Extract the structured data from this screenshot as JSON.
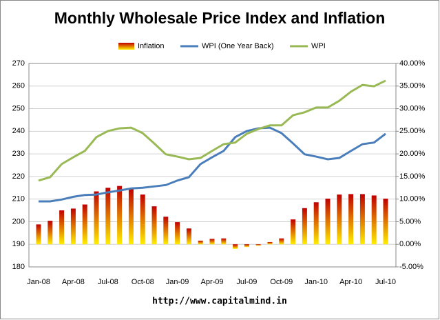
{
  "chart_data": {
    "type": "bar-line",
    "title": "Monthly Wholesale Price Index and Inflation",
    "annotation": "http://www.capitalmind.in",
    "categories": [
      "Jan-08",
      null,
      null,
      "Apr-08",
      null,
      null,
      "Jul-08",
      null,
      null,
      "Oct-08",
      null,
      null,
      "Jan-09",
      null,
      null,
      "Apr-09",
      null,
      null,
      "Jul-09",
      null,
      null,
      "Oct-09",
      null,
      null,
      "Jan-10",
      null,
      null,
      "Apr-10",
      null,
      null,
      "Jul-10"
    ],
    "series": [
      {
        "name": "Inflation",
        "type": "bar",
        "axis": "y2",
        "color": "#c00000",
        "color2": "#ffee00",
        "values": [
          4.4,
          5.2,
          7.5,
          7.9,
          8.8,
          11.7,
          12.5,
          12.9,
          12.3,
          11.0,
          8.4,
          6.1,
          4.9,
          3.5,
          0.8,
          1.2,
          1.3,
          -1.0,
          -0.6,
          -0.3,
          0.5,
          1.3,
          5.5,
          8.0,
          9.3,
          10.1,
          11.0,
          11.1,
          11.1,
          10.8,
          10.1
        ]
      },
      {
        "name": "WPI (One Year Back)",
        "type": "line",
        "color": "#4a7ebb",
        "values": [
          209,
          209,
          209.8,
          211,
          211.8,
          212,
          213,
          213.8,
          214.7,
          215,
          215.6,
          216.2,
          218.2,
          219.7,
          225.5,
          228.5,
          231.3,
          237.4,
          240.1,
          241.3,
          241.6,
          239.2,
          234.6,
          229.8,
          228.8,
          227.6,
          228.2,
          231.3,
          234.3,
          235,
          238.9
        ]
      },
      {
        "name": "WPI",
        "type": "line",
        "color": "#98b954",
        "values": [
          218.2,
          219.7,
          225.5,
          228.5,
          231.3,
          237.4,
          240.1,
          241.3,
          241.6,
          239.2,
          234.6,
          229.8,
          228.8,
          227.6,
          228.2,
          231.3,
          234.3,
          235,
          238.9,
          241,
          242.6,
          242.6,
          247.1,
          248.4,
          250.5,
          250.5,
          253.5,
          257.5,
          260.5,
          259.9,
          262.4
        ]
      }
    ],
    "ylim": [
      180,
      270
    ],
    "yticks": [
      180,
      190,
      200,
      210,
      220,
      230,
      240,
      250,
      260,
      270
    ],
    "y2lim": [
      -5,
      40
    ],
    "y2ticks": [
      {
        "value": -5,
        "label": "-5.00%"
      },
      {
        "value": 0,
        "label": "0.00%"
      },
      {
        "value": 5,
        "label": "5.00%"
      },
      {
        "value": 10,
        "label": "10.00%"
      },
      {
        "value": 15,
        "label": "15.00%"
      },
      {
        "value": 20,
        "label": "20.00%"
      },
      {
        "value": 25,
        "label": "25.00%"
      },
      {
        "value": 30,
        "label": "30.00%"
      },
      {
        "value": 35,
        "label": "35.00%"
      },
      {
        "value": 40,
        "label": "40.00%"
      }
    ],
    "grid": true,
    "legend": "top"
  }
}
